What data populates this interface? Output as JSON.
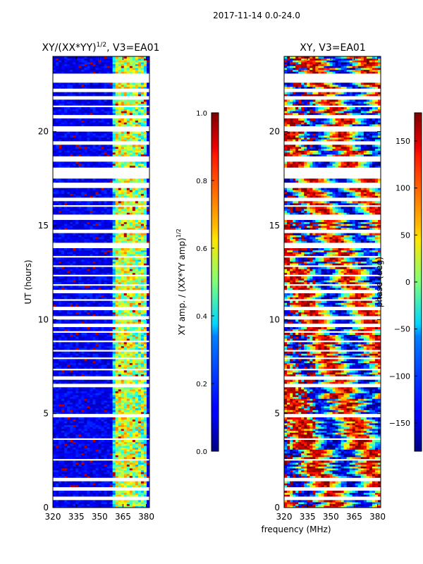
{
  "suptitle": "2017-11-14 0.0-24.0",
  "chart_data": [
    {
      "type": "heatmap",
      "title": "XY/(XX*YY)^{1/2}, V3=EA01",
      "title_main": "XY/(XX*YY)",
      "title_exp": "1/2",
      "title_tail": ", V3=EA01",
      "xlabel": "",
      "ylabel": "UT (hours)",
      "xlim": [
        320,
        382
      ],
      "ylim": [
        0,
        24
      ],
      "xticks": [
        "320",
        "335",
        "350",
        "365",
        "380"
      ],
      "yticks": [
        "0",
        "5",
        "10",
        "15",
        "20"
      ],
      "colorbar": {
        "label": "XY amp. / (XX*YY amp)^{1/2}",
        "label_main": "XY amp. / (XX*YY amp)",
        "label_exp": "1/2",
        "range": [
          0.0,
          1.0
        ],
        "ticks": [
          "0.0",
          "0.2",
          "0.4",
          "0.6",
          "0.8",
          "1.0"
        ],
        "colormap": "jet"
      }
    },
    {
      "type": "heatmap",
      "title": "XY, V3=EA01",
      "xlabel": "frequency (MHz)",
      "ylabel": "",
      "xlim": [
        320,
        382
      ],
      "ylim": [
        0,
        24
      ],
      "xticks": [
        "320",
        "335",
        "350",
        "365",
        "380"
      ],
      "yticks": [
        "0",
        "5",
        "10",
        "15",
        "20"
      ],
      "colorbar": {
        "label": "phase (deg)",
        "range": [
          -180,
          180
        ],
        "ticks": [
          "150",
          "100",
          "50",
          "0",
          "−50",
          "−100",
          "−150"
        ],
        "colormap": "jet"
      }
    }
  ],
  "time_gaps_hours": [
    [
      0.45,
      0.55
    ],
    [
      0.95,
      1.05
    ],
    [
      1.45,
      1.6
    ],
    [
      2.55,
      2.6
    ],
    [
      3.65,
      3.7
    ],
    [
      4.85,
      4.95
    ],
    [
      6.4,
      6.6
    ],
    [
      6.85,
      6.95
    ],
    [
      7.3,
      7.4
    ],
    [
      7.9,
      8.0
    ],
    [
      8.3,
      8.4
    ],
    [
      8.8,
      8.9
    ],
    [
      9.3,
      9.4
    ],
    [
      9.65,
      9.75
    ],
    [
      10.0,
      10.2
    ],
    [
      10.55,
      10.65
    ],
    [
      11.0,
      11.1
    ],
    [
      11.45,
      11.55
    ],
    [
      11.85,
      11.95
    ],
    [
      12.35,
      12.45
    ],
    [
      12.8,
      12.9
    ],
    [
      13.3,
      13.45
    ],
    [
      13.85,
      14.05
    ],
    [
      14.65,
      14.8
    ],
    [
      15.35,
      15.55
    ],
    [
      16.0,
      16.1
    ],
    [
      16.3,
      16.5
    ],
    [
      17.05,
      17.25
    ],
    [
      17.5,
      18.1
    ],
    [
      18.45,
      18.7
    ],
    [
      19.3,
      19.5
    ],
    [
      20.05,
      20.25
    ],
    [
      20.7,
      20.85
    ],
    [
      21.3,
      21.4
    ],
    [
      21.75,
      21.85
    ],
    [
      22.15,
      22.3
    ],
    [
      22.6,
      23.05
    ]
  ]
}
